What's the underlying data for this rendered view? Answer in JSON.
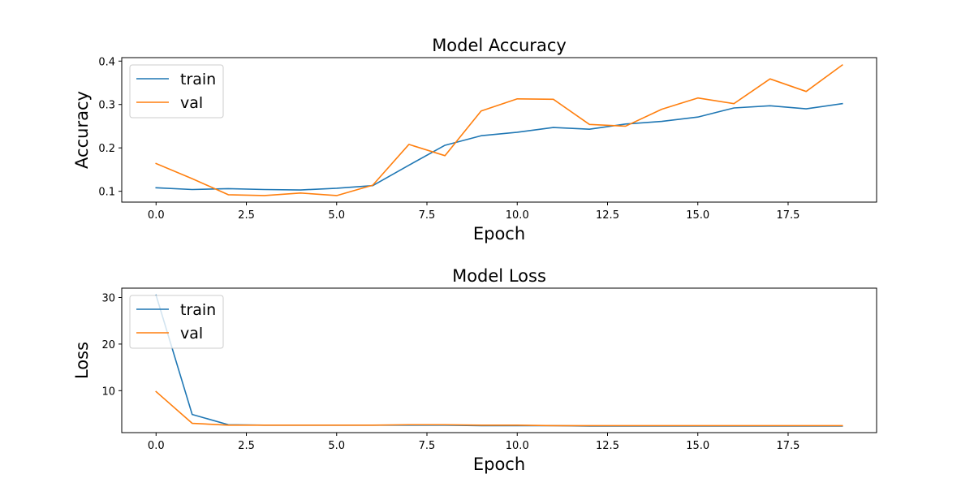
{
  "chart_data": [
    {
      "type": "line",
      "title": "Model Accuracy",
      "xlabel": "Epoch",
      "ylabel": "Accuracy",
      "xlim": [
        -0.95,
        19.95
      ],
      "ylim": [
        0.075,
        0.408
      ],
      "xticks": [
        0.0,
        2.5,
        5.0,
        7.5,
        10.0,
        12.5,
        15.0,
        17.5
      ],
      "xtick_labels": [
        "0.0",
        "2.5",
        "5.0",
        "7.5",
        "10.0",
        "12.5",
        "15.0",
        "17.5"
      ],
      "yticks": [
        0.1,
        0.2,
        0.3,
        0.4
      ],
      "ytick_labels": [
        "0.1",
        "0.2",
        "0.3",
        "0.4"
      ],
      "grid": false,
      "legend": "top-left",
      "x": [
        0,
        1,
        2,
        3,
        4,
        5,
        6,
        7,
        8,
        9,
        10,
        11,
        12,
        13,
        14,
        15,
        16,
        17,
        18,
        19
      ],
      "series": [
        {
          "name": "train",
          "color": "#1f77b4",
          "values": [
            0.108,
            0.104,
            0.106,
            0.104,
            0.103,
            0.107,
            0.113,
            0.16,
            0.206,
            0.228,
            0.236,
            0.247,
            0.243,
            0.255,
            0.261,
            0.271,
            0.292,
            0.297,
            0.29,
            0.302
          ]
        },
        {
          "name": "val",
          "color": "#ff7f0e",
          "values": [
            0.164,
            0.129,
            0.092,
            0.09,
            0.096,
            0.09,
            0.114,
            0.208,
            0.182,
            0.285,
            0.313,
            0.312,
            0.254,
            0.25,
            0.289,
            0.315,
            0.302,
            0.359,
            0.33,
            0.391
          ]
        }
      ]
    },
    {
      "type": "line",
      "title": "Model Loss",
      "xlabel": "Epoch",
      "ylabel": "Loss",
      "xlim": [
        -0.95,
        19.95
      ],
      "ylim": [
        1.0,
        32.0
      ],
      "xticks": [
        0.0,
        2.5,
        5.0,
        7.5,
        10.0,
        12.5,
        15.0,
        17.5
      ],
      "xtick_labels": [
        "0.0",
        "2.5",
        "5.0",
        "7.5",
        "10.0",
        "12.5",
        "15.0",
        "17.5"
      ],
      "yticks": [
        10,
        20,
        30
      ],
      "ytick_labels": [
        "10",
        "20",
        "30"
      ],
      "grid": false,
      "legend": "top-left",
      "x": [
        0,
        1,
        2,
        3,
        4,
        5,
        6,
        7,
        8,
        9,
        10,
        11,
        12,
        13,
        14,
        15,
        16,
        17,
        18,
        19
      ],
      "series": [
        {
          "name": "train",
          "color": "#1f77b4",
          "values": [
            30.5,
            4.9,
            2.7,
            2.6,
            2.6,
            2.6,
            2.6,
            2.6,
            2.6,
            2.5,
            2.5,
            2.5,
            2.4,
            2.4,
            2.4,
            2.4,
            2.4,
            2.4,
            2.4,
            2.4
          ]
        },
        {
          "name": "val",
          "color": "#ff7f0e",
          "values": [
            9.8,
            3.0,
            2.6,
            2.6,
            2.6,
            2.6,
            2.6,
            2.7,
            2.7,
            2.6,
            2.6,
            2.5,
            2.5,
            2.5,
            2.5,
            2.5,
            2.5,
            2.5,
            2.5,
            2.5
          ]
        }
      ]
    }
  ]
}
